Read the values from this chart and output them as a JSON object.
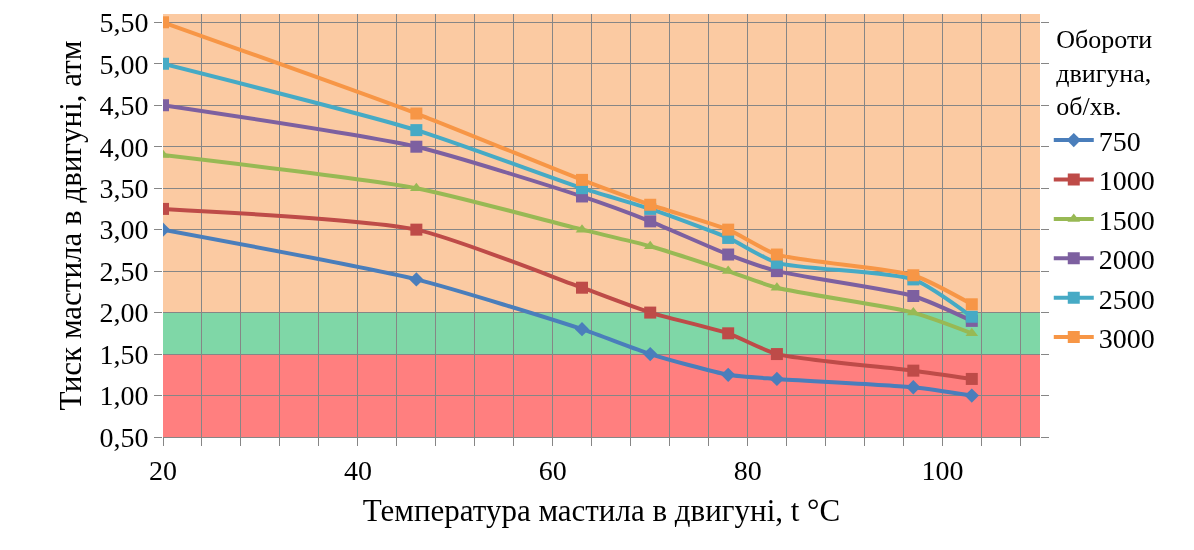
{
  "chart_data": {
    "type": "line",
    "xlabel": "Температура мастила в двигуні, t °C",
    "ylabel": "Тиск мастила в двигуні, атм",
    "legend_title": "Обороти\nдвигуна,\nоб/хв.",
    "x": [
      20,
      46,
      63,
      70,
      78,
      83,
      97,
      103
    ],
    "xlim": [
      20,
      110
    ],
    "xticks": [
      20,
      {
        "value": 24,
        "label": null
      },
      {
        "value": 28,
        "label": null
      },
      {
        "value": 32,
        "label": null
      },
      {
        "value": 36,
        "label": null
      },
      40,
      {
        "value": 44,
        "label": null
      },
      {
        "value": 48,
        "label": null
      },
      {
        "value": 52,
        "label": null
      },
      {
        "value": 56,
        "label": null
      },
      60,
      {
        "value": 64,
        "label": null
      },
      {
        "value": 68,
        "label": null
      },
      {
        "value": 72,
        "label": null
      },
      {
        "value": 76,
        "label": null
      },
      80,
      {
        "value": 84,
        "label": null
      },
      {
        "value": 88,
        "label": null
      },
      {
        "value": 92,
        "label": null
      },
      {
        "value": 96,
        "label": null
      },
      100,
      {
        "value": 104,
        "label": null
      },
      {
        "value": 108,
        "label": null
      }
    ],
    "ylim": [
      0.5,
      5.6
    ],
    "yticks": [
      {
        "value": 0.5,
        "label": "0,50"
      },
      {
        "value": 1,
        "label": "1,00"
      },
      {
        "value": 1.5,
        "label": "1,50"
      },
      {
        "value": 2,
        "label": "2,00"
      },
      {
        "value": 2.5,
        "label": "2,50"
      },
      {
        "value": 3,
        "label": "3,00"
      },
      {
        "value": 3.5,
        "label": "3,50"
      },
      {
        "value": 4,
        "label": "4,00"
      },
      {
        "value": 4.5,
        "label": "4,50"
      },
      {
        "value": 5,
        "label": "5,00"
      },
      {
        "value": 5.5,
        "label": "5,50"
      }
    ],
    "grid": true,
    "legend": "right",
    "line_style": "solid",
    "series": [
      {
        "name": "750",
        "color": "#4a7ebb",
        "marker": "diamond",
        "values": [
          3.0,
          2.4,
          1.8,
          1.5,
          1.25,
          1.2,
          1.1,
          1.0
        ]
      },
      {
        "name": "1000",
        "color": "#be4b48",
        "marker": "square",
        "values": [
          3.25,
          3.0,
          2.3,
          2.0,
          1.75,
          1.5,
          1.3,
          1.2
        ]
      },
      {
        "name": "1500",
        "color": "#98b954",
        "marker": "triangle",
        "values": [
          3.9,
          3.5,
          3.0,
          2.8,
          2.5,
          2.3,
          2.0,
          1.75
        ]
      },
      {
        "name": "2000",
        "color": "#7d60a0",
        "marker": "square",
        "values": [
          4.5,
          4.0,
          3.4,
          3.1,
          2.7,
          2.5,
          2.2,
          1.9
        ]
      },
      {
        "name": "2500",
        "color": "#46aac5",
        "marker": "square",
        "values": [
          5.0,
          4.2,
          3.5,
          3.25,
          2.9,
          2.6,
          2.4,
          1.95
        ]
      },
      {
        "name": "3000",
        "color": "#f79646",
        "marker": "square",
        "values": [
          5.5,
          4.4,
          3.6,
          3.3,
          3.0,
          2.7,
          2.45,
          2.1
        ]
      }
    ],
    "bands": [
      {
        "axis": "y",
        "from": 0.5,
        "to": 1.5,
        "color": "#ff0000"
      },
      {
        "axis": "y",
        "from": 1.5,
        "to": 2.0,
        "color": "#00b050"
      },
      {
        "axis": "y",
        "from": 2.0,
        "to": 5.6,
        "color": "#f79646"
      }
    ]
  }
}
